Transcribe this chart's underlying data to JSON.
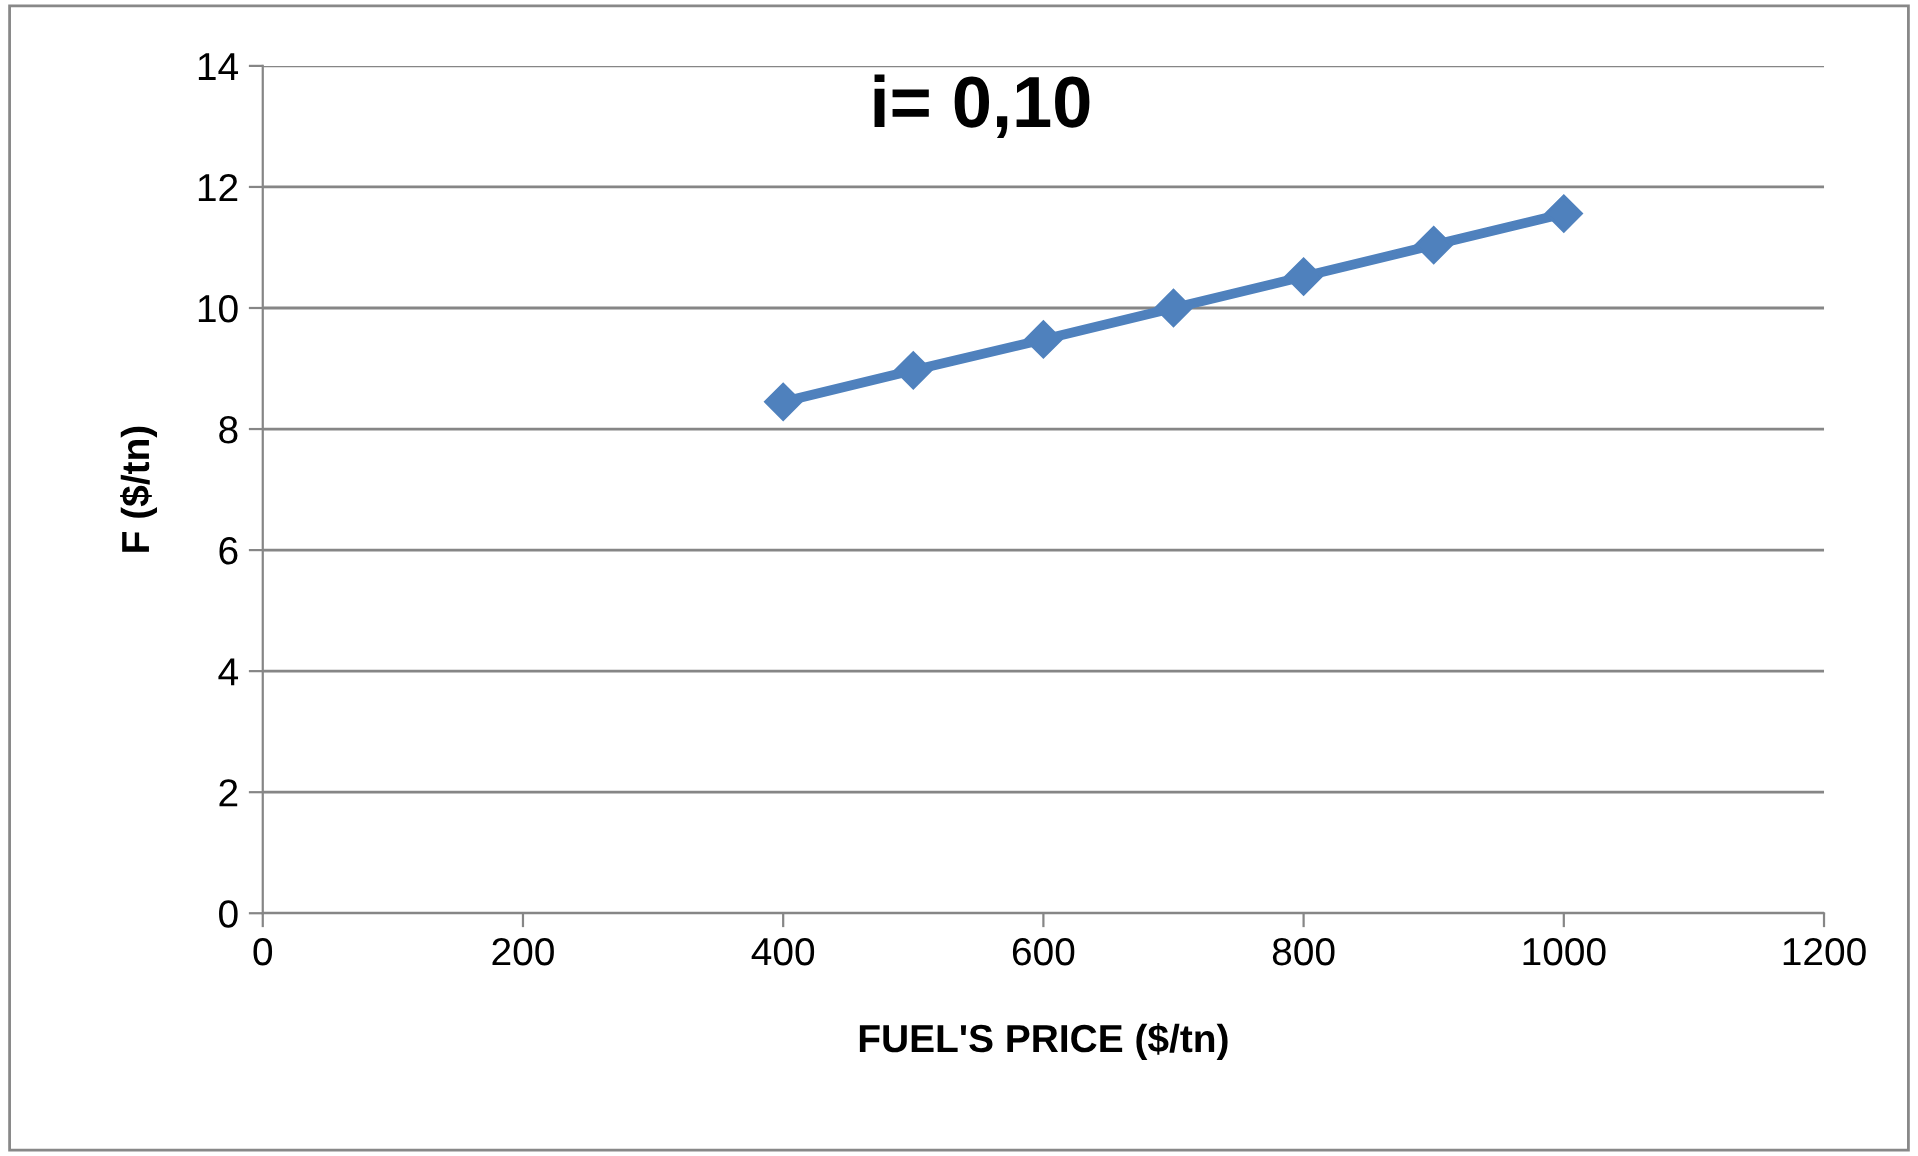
{
  "chart_data": {
    "type": "line",
    "title": "i= 0,10",
    "xlabel": "FUEL'S PRICE ($/tn)",
    "ylabel": "F ($/tn)",
    "x": [
      400,
      500,
      600,
      700,
      800,
      900,
      1000
    ],
    "series": [
      {
        "color": "#4f81bd",
        "values": [
          8.45,
          8.97,
          9.48,
          10.0,
          10.52,
          11.04,
          11.56
        ]
      }
    ],
    "xlim": [
      0,
      1200
    ],
    "xticks": [
      0,
      200,
      400,
      600,
      800,
      1000,
      1200
    ],
    "ylim": [
      0,
      14
    ],
    "yticks": [
      0,
      2,
      4,
      6,
      8,
      10,
      12,
      14
    ],
    "grid": "y",
    "marker": "diamond",
    "line_style": "solid",
    "legend": false
  }
}
